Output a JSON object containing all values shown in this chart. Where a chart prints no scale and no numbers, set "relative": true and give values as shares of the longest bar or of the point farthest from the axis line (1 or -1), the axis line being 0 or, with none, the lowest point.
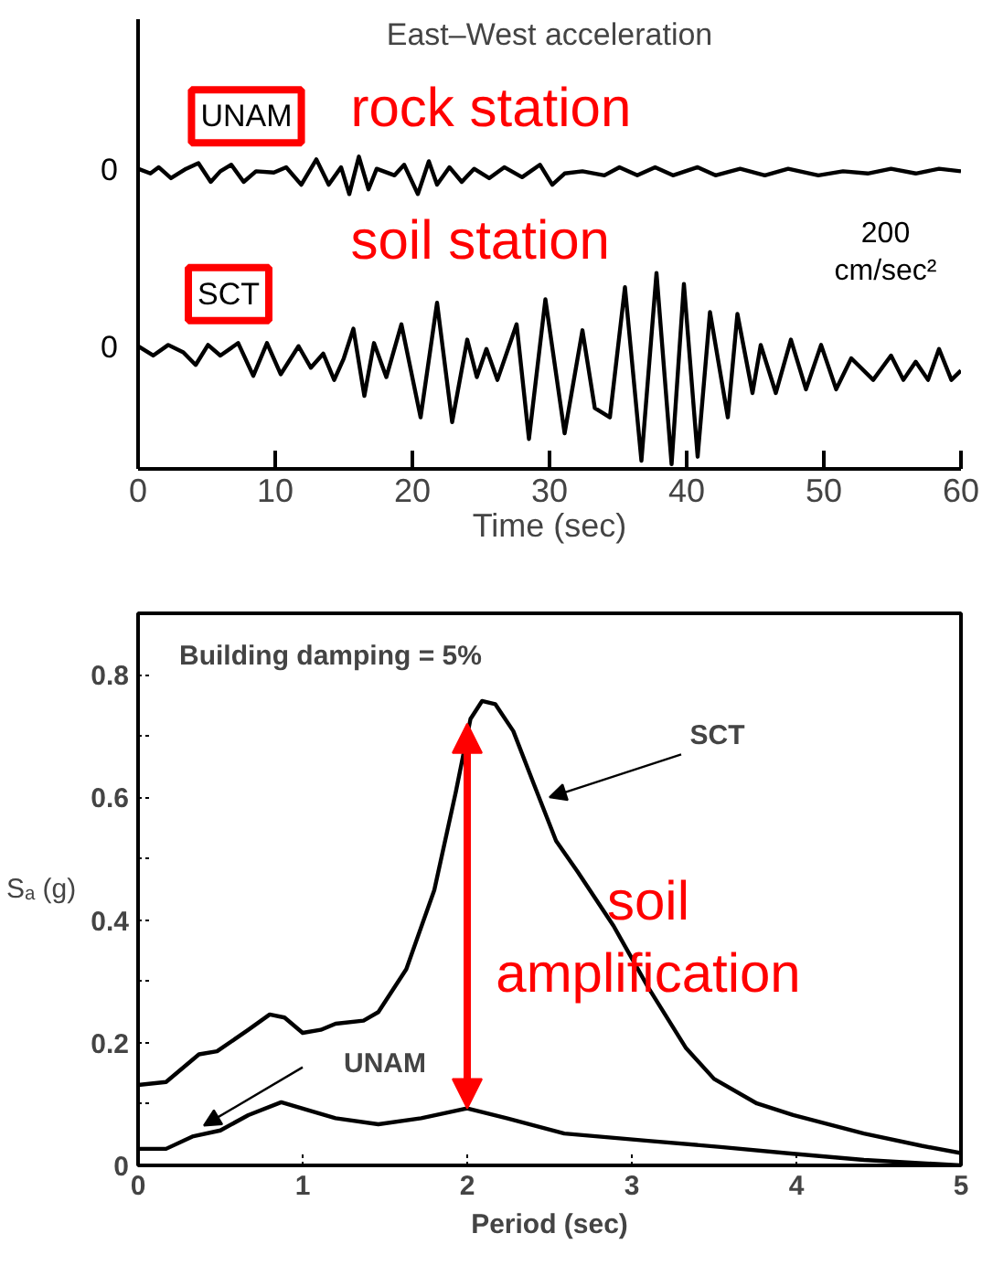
{
  "chart_data": [
    {
      "type": "line",
      "title": "East–West acceleration",
      "xlabel": "Time (sec)",
      "xlim": [
        0,
        60
      ],
      "xticks": [
        0,
        10,
        20,
        30,
        40,
        50,
        60
      ],
      "relative": true,
      "tick_labels": "x",
      "grid": false,
      "marker": "none",
      "line_style": "solid",
      "annotations": [
        "rock station",
        "soil station",
        "200 cm/sec²",
        "0",
        "0"
      ],
      "series": [
        {
          "name": "UNAM",
          "color": "#000000",
          "x": [
            0,
            0.9,
            1.5,
            2.4,
            3.5,
            4.4,
            5.3,
            6.0,
            6.8,
            7.7,
            8.6,
            9.9,
            10.8,
            11.9,
            13.0,
            13.9,
            14.8,
            15.4,
            16.1,
            16.8,
            17.4,
            18.7,
            19.4,
            20.4,
            21.2,
            21.8,
            22.7,
            23.6,
            24.5,
            25.6,
            26.7,
            28.0,
            29.3,
            30.2,
            31.1,
            32.4,
            34.0,
            35.1,
            36.4,
            37.7,
            39.0,
            40.8,
            42.1,
            43.9,
            45.7,
            47.4,
            49.6,
            51.4,
            53.2,
            54.9,
            56.7,
            58.4,
            60.0
          ],
          "values": [
            0.961,
            0.946,
            0.966,
            0.931,
            0.961,
            0.979,
            0.919,
            0.953,
            0.974,
            0.919,
            0.953,
            0.949,
            0.966,
            0.91,
            0.991,
            0.91,
            0.966,
            0.88,
            1.0,
            0.895,
            0.961,
            0.94,
            0.974,
            0.88,
            0.985,
            0.91,
            0.966,
            0.919,
            0.961,
            0.931,
            0.966,
            0.934,
            0.974,
            0.91,
            0.946,
            0.953,
            0.94,
            0.966,
            0.94,
            0.966,
            0.94,
            0.966,
            0.94,
            0.961,
            0.94,
            0.961,
            0.94,
            0.953,
            0.946,
            0.961,
            0.946,
            0.961,
            0.953
          ]
        },
        {
          "name": "SCT",
          "color": "#000000",
          "x": [
            0,
            1.1,
            2.2,
            3.3,
            4.2,
            5.1,
            6.0,
            7.3,
            8.4,
            9.4,
            10.4,
            11.7,
            12.6,
            13.5,
            14.3,
            15.0,
            15.7,
            16.5,
            17.2,
            18.1,
            19.2,
            20.6,
            21.8,
            22.9,
            24.0,
            24.7,
            25.4,
            26.2,
            27.6,
            28.5,
            29.7,
            31.1,
            32.4,
            33.3,
            34.4,
            35.5,
            36.7,
            37.8,
            38.9,
            39.8,
            40.8,
            41.7,
            43.0,
            43.7,
            44.8,
            45.4,
            46.5,
            47.6,
            48.7,
            49.8,
            50.9,
            52.0,
            53.6,
            54.9,
            55.8,
            56.7,
            57.6,
            58.4,
            59.3,
            60.0
          ],
          "values": [
            0.393,
            0.363,
            0.397,
            0.373,
            0.333,
            0.397,
            0.363,
            0.403,
            0.298,
            0.403,
            0.303,
            0.393,
            0.324,
            0.369,
            0.285,
            0.354,
            0.449,
            0.234,
            0.403,
            0.294,
            0.463,
            0.165,
            0.532,
            0.15,
            0.414,
            0.294,
            0.384,
            0.285,
            0.463,
            0.096,
            0.543,
            0.114,
            0.444,
            0.195,
            0.165,
            0.582,
            0.026,
            0.627,
            0.015,
            0.592,
            0.039,
            0.502,
            0.165,
            0.496,
            0.243,
            0.397,
            0.243,
            0.414,
            0.255,
            0.397,
            0.255,
            0.354,
            0.285,
            0.363,
            0.285,
            0.343,
            0.285,
            0.384,
            0.285,
            0.315
          ]
        }
      ]
    },
    {
      "type": "line",
      "xlabel": "Period (sec)",
      "ylabel": "Sₐ (g)",
      "xlim": [
        0,
        5
      ],
      "xticks": [
        0,
        1,
        2,
        3,
        4,
        5
      ],
      "ylim": [
        0,
        0.9
      ],
      "yticks": [
        0,
        {
          "value": 0.1,
          "label": null
        },
        0.2,
        {
          "value": 0.3,
          "label": null
        },
        0.4,
        {
          "value": 0.5,
          "label": null
        },
        0.6,
        {
          "value": 0.7,
          "label": null
        },
        0.8
      ],
      "grid": false,
      "marker": "none",
      "line_style": "solid",
      "annotations": [
        "Building damping = 5%",
        "SCT",
        "UNAM",
        {
          "text": "soil amplification",
          "x": 2.0,
          "y": 0.72
        }
      ],
      "series": [
        {
          "color": "#000000",
          "x": [
            0,
            0.17,
            0.37,
            0.48,
            0.67,
            0.8,
            0.89,
            1.0,
            1.11,
            1.2,
            1.37,
            1.46,
            1.63,
            1.8,
            1.93,
            2.02,
            2.09,
            2.17,
            2.28,
            2.41,
            2.54,
            2.67,
            2.89,
            3.1,
            3.33,
            3.5,
            3.76,
            3.98,
            4.41,
            4.76,
            5.0
          ],
          "values": [
            0.131,
            0.136,
            0.181,
            0.186,
            0.221,
            0.246,
            0.241,
            0.216,
            0.221,
            0.231,
            0.236,
            0.25,
            0.32,
            0.449,
            0.608,
            0.728,
            0.757,
            0.752,
            0.708,
            0.618,
            0.529,
            0.479,
            0.39,
            0.29,
            0.191,
            0.141,
            0.101,
            0.082,
            0.052,
            0.032,
            0.02
          ]
        },
        {
          "color": "#000000",
          "x": [
            0,
            0.17,
            0.33,
            0.5,
            0.67,
            0.87,
            1.02,
            1.2,
            1.46,
            1.72,
            2.0,
            2.24,
            2.59,
            3.1,
            3.54,
            3.98,
            4.41,
            5.0
          ],
          "values": [
            0.027,
            0.027,
            0.047,
            0.057,
            0.082,
            0.103,
            0.091,
            0.077,
            0.067,
            0.077,
            0.093,
            0.077,
            0.052,
            0.04,
            0.03,
            0.019,
            0.009,
            0.0
          ]
        }
      ]
    }
  ]
}
